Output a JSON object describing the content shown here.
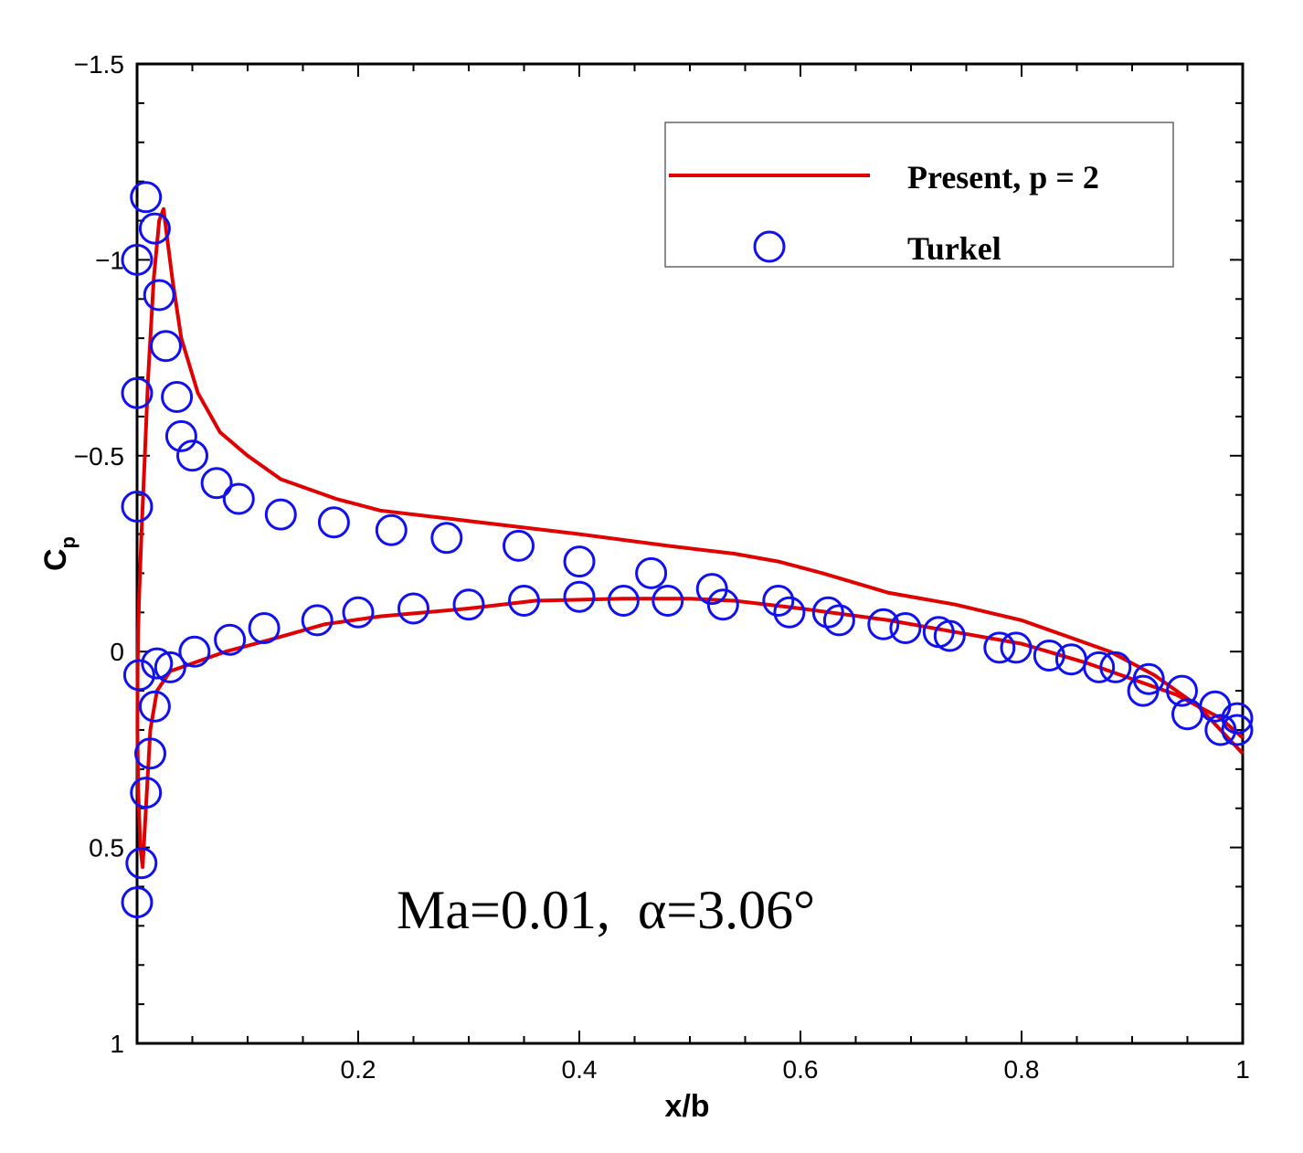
{
  "chart_data": {
    "type": "line",
    "title": "",
    "xlabel": "x/b",
    "ylabel_main": "C",
    "ylabel_sub": "p",
    "xlim": [
      0,
      1
    ],
    "ylim": [
      -1.5,
      1
    ],
    "y_inverted": true,
    "grid": false,
    "x_ticks": [
      {
        "value": 0.2,
        "label": "0.2"
      },
      {
        "value": 0.4,
        "label": "0.4"
      },
      {
        "value": 0.6,
        "label": "0.6"
      },
      {
        "value": 0.8,
        "label": "0.8"
      },
      {
        "value": 1.0,
        "label": "1"
      }
    ],
    "y_ticks": [
      {
        "value": -1.5,
        "label": "−1.5"
      },
      {
        "value": -1.0,
        "label": "−1"
      },
      {
        "value": -0.5,
        "label": "−0.5"
      },
      {
        "value": 0.0,
        "label": "0"
      },
      {
        "value": 0.5,
        "label": "0.5"
      },
      {
        "value": 1.0,
        "label": "1"
      }
    ],
    "annotation": "Ma=0.01,  α=3.06°",
    "legend_position": "top-right",
    "legend": [
      {
        "label": "Present, p = 2",
        "style": "line",
        "color": "#e00000"
      },
      {
        "label": "Turkel",
        "style": "marker",
        "color": "#1010f0"
      }
    ],
    "series": [
      {
        "name": "Present, p = 2",
        "style": "line",
        "color": "#e00000",
        "x": [
          1.0,
          0.96,
          0.92,
          0.88,
          0.84,
          0.8,
          0.74,
          0.68,
          0.62,
          0.58,
          0.54,
          0.48,
          0.4,
          0.34,
          0.28,
          0.22,
          0.18,
          0.13,
          0.1,
          0.075,
          0.055,
          0.04,
          0.032,
          0.027,
          0.024,
          0.02,
          0.015,
          0.01,
          0.007,
          0.004,
          0.002,
          0.001,
          0.0005,
          0.0003,
          0.001,
          0.003,
          0.005,
          0.008,
          0.012,
          0.018,
          0.03,
          0.05,
          0.08,
          0.12,
          0.17,
          0.22,
          0.3,
          0.36,
          0.44,
          0.5,
          0.54,
          0.6,
          0.68,
          0.74,
          0.8,
          0.86,
          0.9,
          0.94,
          0.98,
          1.0
        ],
        "y": [
          0.26,
          0.14,
          0.06,
          0.0,
          -0.04,
          -0.08,
          -0.12,
          -0.15,
          -0.2,
          -0.23,
          -0.25,
          -0.27,
          -0.3,
          -0.32,
          -0.34,
          -0.36,
          -0.39,
          -0.44,
          -0.5,
          -0.56,
          -0.66,
          -0.8,
          -0.95,
          -1.06,
          -1.13,
          -1.1,
          -0.95,
          -0.7,
          -0.5,
          -0.3,
          -0.15,
          -0.05,
          0.05,
          0.2,
          0.35,
          0.5,
          0.55,
          0.4,
          0.2,
          0.1,
          0.05,
          0.03,
          0.0,
          -0.03,
          -0.07,
          -0.09,
          -0.11,
          -0.13,
          -0.135,
          -0.135,
          -0.13,
          -0.11,
          -0.08,
          -0.05,
          -0.02,
          0.03,
          0.07,
          0.11,
          0.17,
          0.22
        ]
      },
      {
        "name": "Turkel",
        "style": "marker",
        "color": "#1010f0",
        "x": [
          0.0,
          0.0,
          0.0,
          0.008,
          0.016,
          0.02,
          0.026,
          0.036,
          0.04,
          0.05,
          0.072,
          0.092,
          0.13,
          0.178,
          0.23,
          0.28,
          0.345,
          0.4,
          0.465,
          0.52,
          0.58,
          0.625,
          0.675,
          0.725,
          0.78,
          0.825,
          0.87,
          0.91,
          0.95,
          0.98,
          0.995,
          0.016,
          0.012,
          0.008,
          0.004,
          0.0,
          0.002,
          0.018,
          0.03,
          0.052,
          0.084,
          0.115,
          0.163,
          0.2,
          0.25,
          0.3,
          0.35,
          0.4,
          0.44,
          0.48,
          0.53,
          0.59,
          0.635,
          0.695,
          0.735,
          0.795,
          0.845,
          0.885,
          0.915,
          0.945,
          0.975,
          0.995
        ],
        "y": [
          -0.37,
          -0.66,
          -1.0,
          -1.16,
          -1.08,
          -0.91,
          -0.78,
          -0.65,
          -0.55,
          -0.5,
          -0.43,
          -0.39,
          -0.35,
          -0.33,
          -0.31,
          -0.29,
          -0.27,
          -0.23,
          -0.2,
          -0.16,
          -0.13,
          -0.1,
          -0.07,
          -0.05,
          -0.01,
          0.01,
          0.04,
          0.1,
          0.16,
          0.2,
          0.2,
          0.14,
          0.26,
          0.36,
          0.54,
          0.64,
          0.06,
          0.03,
          0.04,
          0.0,
          -0.03,
          -0.06,
          -0.08,
          -0.1,
          -0.11,
          -0.12,
          -0.13,
          -0.14,
          -0.13,
          -0.13,
          -0.12,
          -0.1,
          -0.08,
          -0.06,
          -0.04,
          -0.01,
          0.02,
          0.04,
          0.07,
          0.1,
          0.14,
          0.17
        ]
      }
    ]
  }
}
